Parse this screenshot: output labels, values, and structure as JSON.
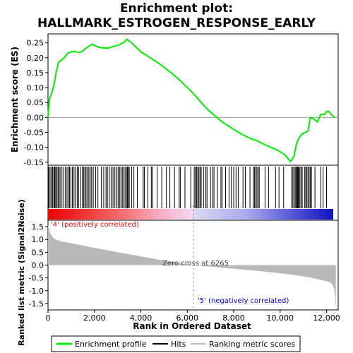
{
  "chart_data": {
    "type": "line",
    "title_line1": "Enrichment plot:",
    "title_line2": "HALLMARK_ESTROGEN_RESPONSE_EARLY",
    "es_ylabel": "Enrichment score (ES)",
    "metric_ylabel": "Ranked list metric (Signal2Noise)",
    "xlabel": "Rank in Ordered Dataset",
    "x_ticks": [
      0,
      2000,
      4000,
      6000,
      8000,
      10000,
      12000
    ],
    "x_tick_labels": [
      "0",
      "2,000",
      "4,000",
      "6,000",
      "8,000",
      "10,000",
      "12,000"
    ],
    "xlim": [
      0,
      12500
    ],
    "es_ylim": [
      -0.16,
      0.28
    ],
    "es_y_ticks": [
      -0.15,
      -0.1,
      -0.05,
      0.0,
      0.05,
      0.1,
      0.15,
      0.2,
      0.25
    ],
    "es_y_tick_labels": [
      "-0.15",
      "-0.10",
      "-0.05",
      "0.00",
      "0.05",
      "0.10",
      "0.15",
      "0.20",
      "0.25"
    ],
    "metric_ylim": [
      -1.75,
      1.75
    ],
    "metric_y_ticks": [
      -1.5,
      -1.0,
      -0.5,
      0.0,
      0.5,
      1.0,
      1.5
    ],
    "metric_y_tick_labels": [
      "-1.5",
      "-1.0",
      "-0.5",
      "0.0",
      "0.5",
      "1.0",
      "1.5"
    ],
    "n_genes": 12400,
    "zero_cross_rank": 6265,
    "zero_cross_label": "Zero cross at 6265",
    "pos_label": "'4' (positively correlated)",
    "neg_label": "'5' (negatively correlated)",
    "es_curve": {
      "x": [
        0,
        60,
        150,
        250,
        350,
        450,
        550,
        700,
        850,
        1000,
        1150,
        1300,
        1450,
        1600,
        1750,
        1900,
        2050,
        2200,
        2400,
        2600,
        2800,
        2950,
        3100,
        3250,
        3400,
        3600,
        3800,
        4000,
        4200,
        4400,
        4600,
        4800,
        5000,
        5300,
        5600,
        5900,
        6265,
        6600,
        6900,
        7200,
        7500,
        7800,
        8100,
        8400,
        8700,
        9000,
        9300,
        9600,
        9900,
        10200,
        10450,
        10600,
        10700,
        10800,
        10950,
        11100,
        11200,
        11300,
        11450,
        11600,
        11750,
        11900,
        12000,
        12100,
        12200,
        12350
      ],
      "y": [
        0.0,
        0.06,
        0.08,
        0.105,
        0.15,
        0.185,
        0.19,
        0.2,
        0.215,
        0.22,
        0.222,
        0.218,
        0.22,
        0.23,
        0.238,
        0.245,
        0.24,
        0.235,
        0.233,
        0.232,
        0.238,
        0.24,
        0.245,
        0.25,
        0.262,
        0.25,
        0.235,
        0.22,
        0.21,
        0.2,
        0.19,
        0.18,
        0.168,
        0.15,
        0.13,
        0.108,
        0.08,
        0.05,
        0.025,
        0.005,
        -0.015,
        -0.03,
        -0.045,
        -0.058,
        -0.07,
        -0.078,
        -0.09,
        -0.1,
        -0.11,
        -0.125,
        -0.148,
        -0.13,
        -0.09,
        -0.07,
        -0.055,
        -0.05,
        -0.045,
        0.0,
        -0.005,
        -0.015,
        0.01,
        0.01,
        0.02,
        0.02,
        0.01,
        0.0
      ]
    },
    "hits": [
      30,
      90,
      140,
      200,
      250,
      290,
      330,
      380,
      430,
      470,
      520,
      600,
      680,
      750,
      820,
      880,
      930,
      990,
      1050,
      1120,
      1180,
      1260,
      1320,
      1400,
      1480,
      1540,
      1590,
      1640,
      1700,
      1760,
      1820,
      1880,
      1950,
      2050,
      2150,
      2300,
      2400,
      2500,
      2560,
      2640,
      2720,
      2800,
      2880,
      2960,
      3020,
      3080,
      3140,
      3200,
      3260,
      3320,
      3380,
      3420,
      3460,
      3500,
      3600,
      3700,
      3850,
      4100,
      4150,
      4300,
      4450,
      4500,
      4700,
      4900,
      5100,
      5250,
      5450,
      5650,
      5700,
      5900,
      6150,
      6300,
      6350,
      6400,
      6450,
      6500,
      6550,
      6600,
      6700,
      6800,
      6850,
      7000,
      7100,
      7150,
      7300,
      7450,
      7500,
      7650,
      7800,
      7900,
      8000,
      8100,
      8200,
      8400,
      8500,
      8700,
      8850,
      8900,
      8950,
      9000,
      9050,
      9100,
      9350,
      9500,
      9800,
      9950,
      10150,
      10500,
      10550,
      10600,
      10650,
      10700,
      10720,
      10750,
      10780,
      10800,
      10850,
      10900,
      10950,
      11050,
      11100,
      11150,
      11200,
      11250,
      11300,
      11350,
      11500,
      11750,
      11850,
      12000
    ],
    "legend": {
      "items": [
        {
          "label": "Enrichment profile",
          "color": "#00ee00"
        },
        {
          "label": "Hits",
          "color": "#000000"
        },
        {
          "label": "Ranking metric scores",
          "color": "#bbbbbb"
        }
      ]
    },
    "colors": {
      "es_line": "#00ee00",
      "metric_fill": "#b8b8b8",
      "pos_label": "#ff0000",
      "neg_label": "#0000ff",
      "zero_line": "#a0a0a0"
    }
  }
}
